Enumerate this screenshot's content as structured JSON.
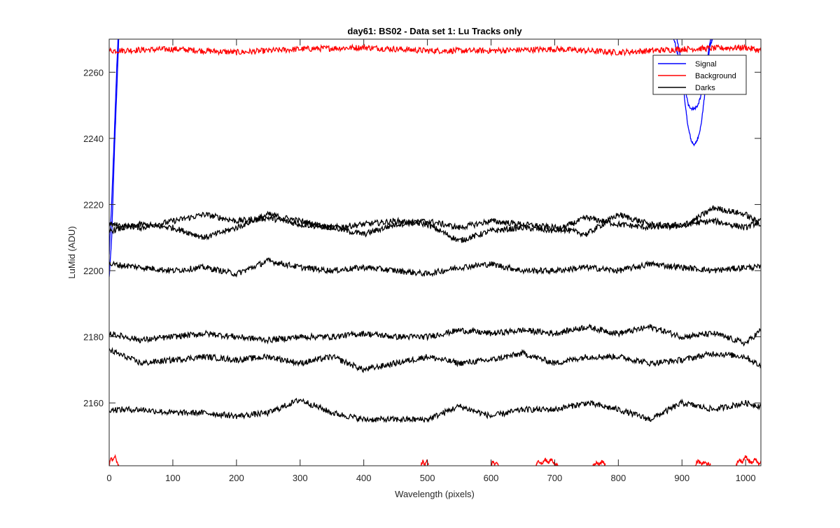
{
  "chart_data": {
    "type": "line",
    "title": "day61: BS02 - Data set 1: Lu Tracks only",
    "xlabel": "Wavelength (pixels)",
    "ylabel": "LuMid (ADU)",
    "xlim": [
      0,
      1024
    ],
    "ylim": [
      2141,
      2270
    ],
    "xticks": [
      0,
      100,
      200,
      300,
      400,
      500,
      600,
      700,
      800,
      900,
      1000
    ],
    "yticks": [
      2160,
      2180,
      2200,
      2220,
      2240,
      2260
    ],
    "grid": false,
    "legend": {
      "placement": "top-right",
      "entries": [
        {
          "label": "Signal",
          "color": "#0000ff"
        },
        {
          "label": "Background",
          "color": "#ff0000"
        },
        {
          "label": "Darks",
          "color": "#000000"
        }
      ]
    },
    "series": [
      {
        "group": "Signal",
        "color": "#0000ff",
        "x": [
          0,
          4,
          8,
          12,
          16
        ],
        "y": [
          2198,
          2210,
          2235,
          2255,
          2275
        ]
      },
      {
        "group": "Signal",
        "color": "#0000ff",
        "x": [
          0,
          4,
          8,
          12,
          16
        ],
        "y": [
          2205,
          2221,
          2241,
          2262,
          2280
        ]
      },
      {
        "group": "Signal",
        "color": "#0000ff",
        "x": [
          880,
          890,
          900,
          905,
          910,
          915,
          920,
          925,
          930,
          935,
          940,
          945,
          950
        ],
        "y": [
          2275,
          2272,
          2262,
          2250,
          2243,
          2239,
          2238,
          2240,
          2244,
          2252,
          2262,
          2270,
          2276
        ]
      },
      {
        "group": "Signal",
        "color": "#0000ff",
        "x": [
          885,
          895,
          905,
          910,
          915,
          920,
          925,
          930,
          935,
          945
        ],
        "y": [
          2272,
          2264,
          2255,
          2250,
          2249,
          2249,
          2250,
          2253,
          2258,
          2270
        ]
      },
      {
        "group": "Signal",
        "color": "#0000ff",
        "x": [
          940,
          944,
          948,
          952
        ],
        "y": [
          2264,
          2268,
          2270,
          2272
        ]
      },
      {
        "group": "Background",
        "color": "#ff0000",
        "x": [
          0,
          100,
          200,
          300,
          400,
          500,
          600,
          700,
          800,
          900,
          1000,
          1024
        ],
        "y": [
          2266.5,
          2267,
          2266,
          2267,
          2267.5,
          2266.5,
          2266.5,
          2267,
          2266,
          2267,
          2267.5,
          2266.5
        ]
      },
      {
        "group": "Background",
        "color": "#ff0000",
        "x": [
          0,
          3,
          6,
          9,
          12,
          15
        ],
        "y": [
          2141,
          2143.5,
          2142.5,
          2144,
          2142,
          2141
        ]
      },
      {
        "group": "Background",
        "color": "#ff0000",
        "x": [
          490,
          493,
          496,
          499,
          502
        ],
        "y": [
          2141,
          2142.5,
          2141,
          2143,
          2141
        ]
      },
      {
        "group": "Background",
        "color": "#ff0000",
        "x": [
          600,
          603,
          606,
          609,
          612
        ],
        "y": [
          2141,
          2142.5,
          2141,
          2142,
          2141
        ]
      },
      {
        "group": "Background",
        "color": "#ff0000",
        "x": [
          670,
          675,
          680,
          685,
          690,
          695,
          700,
          705
        ],
        "y": [
          2141,
          2142.5,
          2141.5,
          2143,
          2142,
          2143,
          2141.5,
          2141
        ]
      },
      {
        "group": "Background",
        "color": "#ff0000",
        "x": [
          760,
          765,
          770,
          775,
          780
        ],
        "y": [
          2141,
          2142,
          2141.5,
          2142.5,
          2141
        ]
      },
      {
        "group": "Background",
        "color": "#ff0000",
        "x": [
          920,
          925,
          930,
          935,
          940,
          945
        ],
        "y": [
          2141,
          2142.5,
          2141.5,
          2142,
          2141.5,
          2141
        ]
      },
      {
        "group": "Background",
        "color": "#ff0000",
        "x": [
          985,
          990,
          995,
          1000,
          1005,
          1010,
          1015,
          1020,
          1024
        ],
        "y": [
          2141,
          2143,
          2142,
          2144,
          2142.5,
          2142,
          2143,
          2141.5,
          2142
        ]
      },
      {
        "group": "Darks",
        "color": "#000000",
        "x": [
          0,
          50,
          100,
          150,
          200,
          250,
          300,
          350,
          400,
          450,
          500,
          550,
          600,
          650,
          700,
          750,
          800,
          850,
          900,
          950,
          1000,
          1024
        ],
        "y": [
          2214,
          2213,
          2215,
          2217,
          2215,
          2216,
          2214,
          2213,
          2214,
          2215,
          2214,
          2209,
          2212,
          2213,
          2212,
          2216,
          2214,
          2213,
          2214,
          2215,
          2213,
          2215
        ]
      },
      {
        "group": "Darks",
        "color": "#000000",
        "x": [
          0,
          50,
          100,
          150,
          200,
          250,
          300,
          350,
          400,
          450,
          500,
          550,
          600,
          650,
          700,
          750,
          800,
          850,
          900,
          950,
          1000,
          1024
        ],
        "y": [
          2212,
          2214,
          2213,
          2210,
          2213,
          2217,
          2215,
          2213,
          2211,
          2214,
          2215,
          2213,
          2215,
          2214,
          2213,
          2211,
          2217,
          2214,
          2213,
          2219,
          2217,
          2214
        ]
      },
      {
        "group": "Darks",
        "color": "#000000",
        "x": [
          0,
          50,
          100,
          150,
          200,
          250,
          300,
          350,
          400,
          450,
          500,
          550,
          600,
          650,
          700,
          750,
          800,
          850,
          900,
          950,
          1000,
          1024
        ],
        "y": [
          2202,
          2201,
          2200,
          2201,
          2199,
          2203,
          2201,
          2200,
          2201,
          2200,
          2199,
          2201,
          2202,
          2200,
          2200,
          2201,
          2200,
          2202,
          2201,
          2200,
          2201,
          2201
        ]
      },
      {
        "group": "Darks",
        "color": "#000000",
        "x": [
          0,
          50,
          100,
          150,
          200,
          250,
          300,
          350,
          400,
          450,
          500,
          550,
          600,
          650,
          700,
          750,
          800,
          850,
          900,
          950,
          1000,
          1024
        ],
        "y": [
          2181,
          2179,
          2180,
          2181,
          2180,
          2179,
          2180,
          2180,
          2181,
          2180,
          2180,
          2182,
          2181,
          2182,
          2181,
          2183,
          2181,
          2183,
          2180,
          2181,
          2178,
          2182
        ]
      },
      {
        "group": "Darks",
        "color": "#000000",
        "x": [
          0,
          50,
          100,
          150,
          200,
          250,
          300,
          350,
          400,
          450,
          500,
          550,
          600,
          650,
          700,
          750,
          800,
          850,
          900,
          950,
          1000,
          1024
        ],
        "y": [
          2176,
          2172,
          2173,
          2174,
          2173,
          2174,
          2172,
          2174,
          2170,
          2172,
          2174,
          2172,
          2173,
          2175,
          2172,
          2174,
          2174,
          2172,
          2173,
          2175,
          2174,
          2171
        ]
      },
      {
        "group": "Darks",
        "color": "#000000",
        "x": [
          0,
          50,
          100,
          150,
          200,
          250,
          300,
          350,
          400,
          450,
          500,
          550,
          600,
          650,
          700,
          750,
          800,
          850,
          900,
          950,
          1000,
          1024
        ],
        "y": [
          2158,
          2158,
          2157,
          2157,
          2156,
          2157,
          2161,
          2157,
          2155,
          2155,
          2155,
          2159,
          2156,
          2158,
          2158,
          2160,
          2158,
          2155,
          2160,
          2158,
          2160,
          2159
        ]
      }
    ]
  }
}
